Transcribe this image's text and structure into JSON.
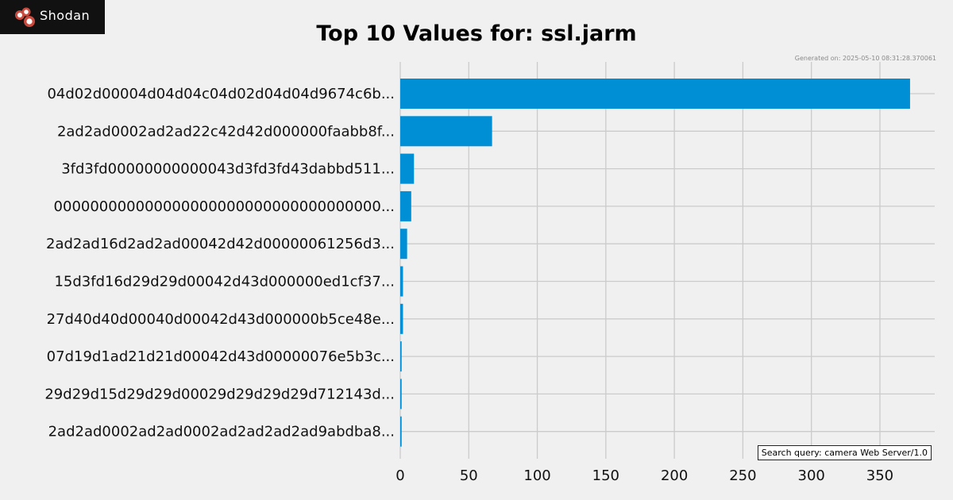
{
  "brand": {
    "name": "Shodan"
  },
  "generated_text": "Generated on: 2025-05-10 08:31:28.370061",
  "search_query_text": "Search query: camera Web Server/1.0",
  "colors": {
    "bar": "#008fd5",
    "background": "#f0f0f0",
    "grid": "#cbcbcb"
  },
  "chart_data": {
    "type": "bar",
    "orientation": "horizontal",
    "title": "Top 10 Values for: ssl.jarm",
    "categories": [
      "04d02d00004d04d04c04d02d04d04d9674c6b...",
      "2ad2ad0002ad2ad22c42d42d000000faabb8f...",
      "3fd3fd00000000000043d3fd3fd43dabbd511...",
      "000000000000000000000000000000000000...",
      "2ad2ad16d2ad2ad00042d42d00000061256d3...",
      "15d3fd16d29d29d00042d43d000000ed1cf37...",
      "27d40d40d00040d00042d43d000000b5ce48e...",
      "07d19d1ad21d21d00042d43d00000076e5b3c...",
      "29d29d15d29d29d00029d29d29d29d712143d...",
      "2ad2ad0002ad2ad0002ad2ad2ad2ad9abdba8..."
    ],
    "values": [
      372,
      67,
      10,
      8,
      5,
      2,
      2,
      1,
      1,
      1
    ],
    "xlim": [
      0,
      390
    ],
    "xticks": [
      0,
      50,
      100,
      150,
      200,
      250,
      300,
      350
    ],
    "grid": true,
    "xlabel": "",
    "ylabel": ""
  }
}
